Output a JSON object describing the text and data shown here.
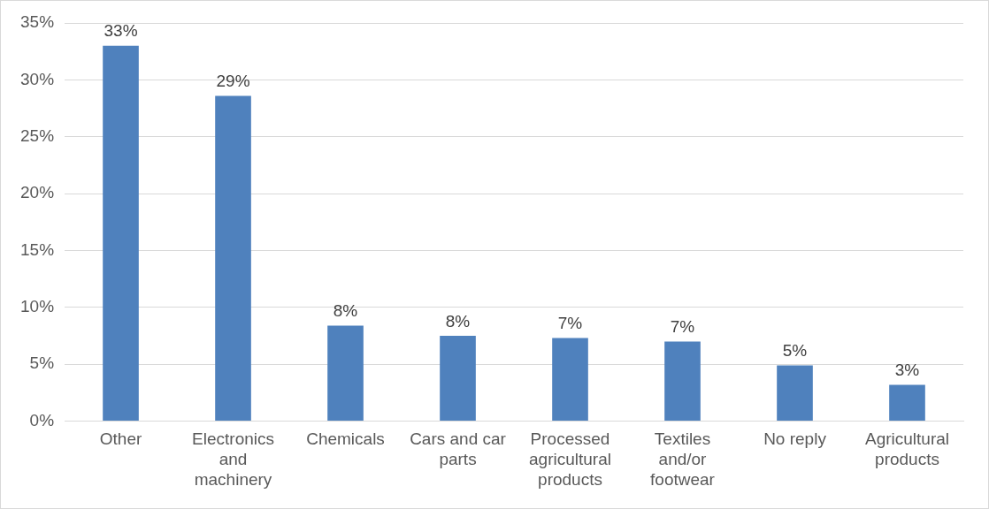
{
  "chart_data": {
    "type": "bar",
    "categories": [
      "Other",
      "Electronics and machinery",
      "Chemicals",
      "Cars and car parts",
      "Processed agricultural products",
      "Textiles and/or footwear",
      "No reply",
      "Agricultural products"
    ],
    "values": [
      33.0,
      28.6,
      8.4,
      7.5,
      7.3,
      7.0,
      4.9,
      3.2
    ],
    "value_labels": [
      "33%",
      "29%",
      "8%",
      "8%",
      "7%",
      "7%",
      "5%",
      "3%"
    ],
    "color": "#4f81bd",
    "ylim": [
      0,
      35
    ],
    "yticks": [
      {
        "value": 0,
        "label": "0%"
      },
      {
        "value": 5,
        "label": "5%"
      },
      {
        "value": 10,
        "label": "10%"
      },
      {
        "value": 15,
        "label": "15%"
      },
      {
        "value": 20,
        "label": "20%"
      },
      {
        "value": 25,
        "label": "25%"
      },
      {
        "value": 30,
        "label": "30%"
      },
      {
        "value": 35,
        "label": "35%"
      }
    ],
    "grid": "y",
    "legend": false
  }
}
